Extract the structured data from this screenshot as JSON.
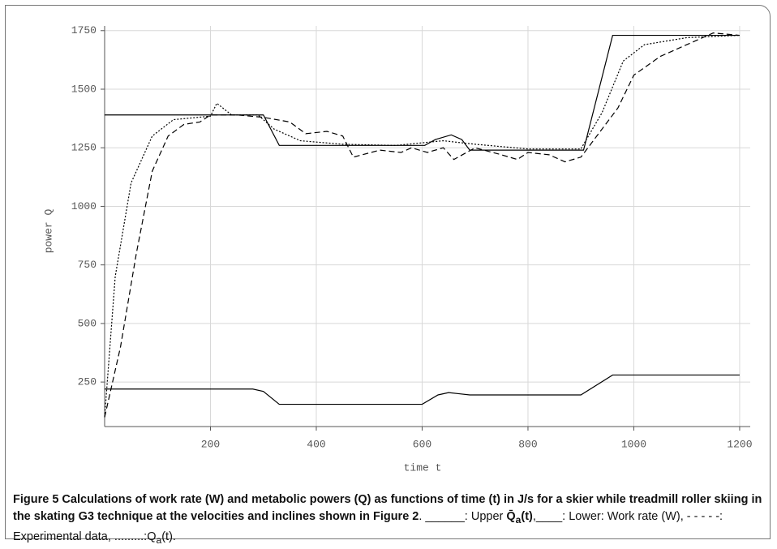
{
  "chart_data": {
    "type": "line",
    "xlabel": "time t",
    "ylabel": "power Q",
    "xlim": [
      0,
      1220
    ],
    "ylim": [
      60,
      1770
    ],
    "xticks": [
      200,
      400,
      600,
      800,
      1000,
      1200
    ],
    "yticks": [
      250,
      500,
      750,
      1000,
      1250,
      1500,
      1750
    ],
    "grid": true,
    "series": [
      {
        "color": "#000000",
        "style": "solid",
        "x": [
          0,
          300,
          330,
          605,
          625,
          655,
          675,
          690,
          905,
          960,
          1200
        ],
        "values": [
          1390,
          1390,
          1260,
          1260,
          1285,
          1305,
          1285,
          1240,
          1240,
          1730,
          1730
        ]
      },
      {
        "color": "#000000",
        "style": "solid",
        "x": [
          0,
          280,
          300,
          330,
          600,
          630,
          650,
          670,
          690,
          900,
          960,
          1200
        ],
        "values": [
          220,
          220,
          210,
          155,
          155,
          195,
          205,
          200,
          195,
          195,
          280,
          280
        ]
      },
      {
        "color": "#000000",
        "style": "dashed",
        "x": [
          0,
          30,
          60,
          90,
          120,
          150,
          180,
          200,
          250,
          300,
          350,
          380,
          420,
          450,
          470,
          520,
          560,
          580,
          610,
          640,
          660,
          700,
          750,
          780,
          800,
          840,
          870,
          900,
          930,
          970,
          1000,
          1050,
          1100,
          1150,
          1200
        ],
        "values": [
          100,
          400,
          800,
          1150,
          1300,
          1350,
          1360,
          1390,
          1390,
          1380,
          1360,
          1310,
          1320,
          1300,
          1210,
          1240,
          1230,
          1250,
          1230,
          1250,
          1200,
          1250,
          1220,
          1200,
          1230,
          1220,
          1190,
          1210,
          1300,
          1420,
          1560,
          1640,
          1690,
          1740,
          1730
        ]
      },
      {
        "color": "#000000",
        "style": "dotted",
        "x": [
          0,
          20,
          50,
          90,
          130,
          200,
          212,
          240,
          290,
          320,
          370,
          450,
          550,
          640,
          700,
          800,
          900,
          940,
          980,
          1020,
          1100,
          1200
        ],
        "values": [
          100,
          700,
          1100,
          1300,
          1370,
          1385,
          1440,
          1390,
          1390,
          1330,
          1280,
          1265,
          1260,
          1280,
          1265,
          1245,
          1245,
          1400,
          1620,
          1690,
          1720,
          1730
        ]
      }
    ]
  },
  "caption": {
    "label": "Figure 5",
    "title": " Calculations of work rate (W) and metabolic powers (Q) as functions of time (t) in J/s for a skier while treadmill roller skiing in the skating G3 technique at the velocities and inclines shown in Figure 2",
    "parts": [
      ". ______: Upper ",
      "Q̄",
      "a",
      "(t)",
      ",____: Lower: Work rate (W), - - - - -: Experimental data, .........:Q",
      "a",
      "(t)."
    ]
  }
}
